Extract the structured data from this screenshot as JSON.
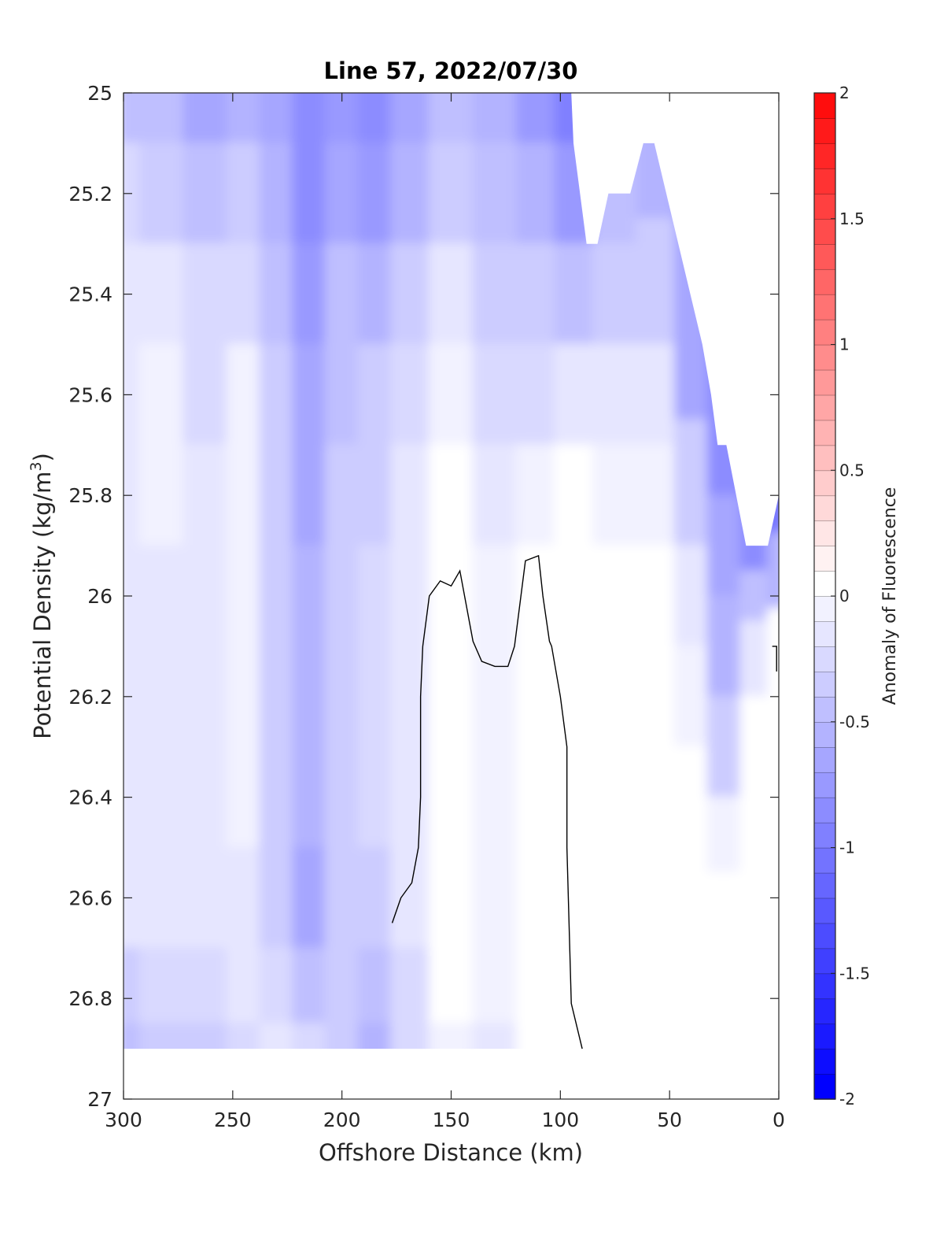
{
  "chart_data": {
    "type": "contour",
    "title": "Line 57, 2022/07/30",
    "xlabel": "Offshore Distance (km)",
    "ylabel_main": "Potential Density (kg/m",
    "ylabel_sup": "3",
    "ylabel_close": ")",
    "colorbar_label": "Anomaly of Fluorescence",
    "xlim": [
      300,
      0
    ],
    "ylim": [
      25,
      27
    ],
    "x_reversed": true,
    "y_reversed": true,
    "xticks": [
      300,
      250,
      200,
      150,
      100,
      50,
      0
    ],
    "xtick_labels": [
      "300",
      "250",
      "200",
      "150",
      "100",
      "50",
      "0"
    ],
    "yticks": [
      25,
      25.2,
      25.4,
      25.6,
      25.8,
      26,
      26.2,
      26.4,
      26.6,
      26.8,
      27
    ],
    "ytick_labels": [
      "25",
      "25.2",
      "25.4",
      "25.6",
      "25.8",
      "26",
      "26.2",
      "26.4",
      "26.6",
      "26.8",
      "27"
    ],
    "colorbar": {
      "range": [
        -2,
        2
      ],
      "levels": 40,
      "ticks": [
        -2,
        -1.5,
        -1,
        -0.5,
        0,
        0.5,
        1,
        1.5,
        2
      ],
      "tick_labels": [
        "-2",
        "-1.5",
        "-1",
        "-0.5",
        "0",
        "0.5",
        "1",
        "1.5",
        "2"
      ],
      "colormap": "blue-white-red",
      "low_color": "#0000ff",
      "mid_color": "#ffffff",
      "high_color": "#ff0000"
    },
    "data_extent": {
      "x": [
        0,
        300
      ],
      "y_bottom": 26.9,
      "upper_boundary": [
        [
          300,
          25
        ],
        [
          95,
          25
        ],
        [
          94,
          25.1
        ],
        [
          88,
          25.3
        ],
        [
          83,
          25.3
        ],
        [
          78,
          25.2
        ],
        [
          68,
          25.2
        ],
        [
          62,
          25.1
        ],
        [
          57,
          25.1
        ],
        [
          35,
          25.5
        ],
        [
          31,
          25.6
        ],
        [
          28,
          25.7
        ],
        [
          24,
          25.7
        ],
        [
          15,
          25.9
        ],
        [
          5,
          25.9
        ],
        [
          0,
          25.8
        ]
      ]
    },
    "columns": [
      {
        "x": 300,
        "values": [
          [
            25.0,
            -0.45
          ],
          [
            25.2,
            -0.25
          ],
          [
            25.4,
            -0.15
          ],
          [
            25.6,
            -0.15
          ],
          [
            25.8,
            -0.15
          ],
          [
            26.0,
            -0.15
          ],
          [
            26.2,
            -0.15
          ],
          [
            26.4,
            -0.15
          ],
          [
            26.6,
            -0.2
          ],
          [
            26.8,
            -0.35
          ],
          [
            26.9,
            -0.45
          ]
        ]
      },
      {
        "x": 285,
        "values": [
          [
            25.0,
            -0.5
          ],
          [
            25.2,
            -0.35
          ],
          [
            25.4,
            -0.15
          ],
          [
            25.6,
            -0.05
          ],
          [
            25.8,
            -0.05
          ],
          [
            26.0,
            -0.15
          ],
          [
            26.2,
            -0.15
          ],
          [
            26.4,
            -0.15
          ],
          [
            26.6,
            -0.2
          ],
          [
            26.8,
            -0.3
          ],
          [
            26.9,
            -0.4
          ]
        ]
      },
      {
        "x": 260,
        "values": [
          [
            25.0,
            -0.65
          ],
          [
            25.2,
            -0.5
          ],
          [
            25.4,
            -0.3
          ],
          [
            25.6,
            -0.25
          ],
          [
            25.8,
            -0.2
          ],
          [
            26.0,
            -0.2
          ],
          [
            26.2,
            -0.2
          ],
          [
            26.4,
            -0.2
          ],
          [
            26.6,
            -0.2
          ],
          [
            26.8,
            -0.3
          ],
          [
            26.9,
            -0.35
          ]
        ]
      },
      {
        "x": 245,
        "values": [
          [
            25.0,
            -0.55
          ],
          [
            25.2,
            -0.4
          ],
          [
            25.4,
            -0.25
          ],
          [
            25.6,
            -0.05
          ],
          [
            25.8,
            -0.05
          ],
          [
            26.0,
            -0.1
          ],
          [
            26.2,
            -0.1
          ],
          [
            26.4,
            -0.1
          ],
          [
            26.6,
            -0.15
          ],
          [
            26.8,
            -0.2
          ],
          [
            26.9,
            -0.25
          ]
        ]
      },
      {
        "x": 230,
        "values": [
          [
            25.0,
            -0.7
          ],
          [
            25.2,
            -0.6
          ],
          [
            25.4,
            -0.5
          ],
          [
            25.6,
            -0.4
          ],
          [
            25.8,
            -0.35
          ],
          [
            26.0,
            -0.35
          ],
          [
            26.2,
            -0.35
          ],
          [
            26.4,
            -0.35
          ],
          [
            26.6,
            -0.35
          ],
          [
            26.8,
            -0.25
          ],
          [
            26.9,
            -0.2
          ]
        ]
      },
      {
        "x": 215,
        "values": [
          [
            25.0,
            -0.9
          ],
          [
            25.2,
            -0.85
          ],
          [
            25.4,
            -0.8
          ],
          [
            25.6,
            -0.7
          ],
          [
            25.8,
            -0.65
          ],
          [
            26.0,
            -0.6
          ],
          [
            26.2,
            -0.6
          ],
          [
            26.4,
            -0.6
          ],
          [
            26.6,
            -0.65
          ],
          [
            26.8,
            -0.5
          ],
          [
            26.9,
            -0.25
          ]
        ]
      },
      {
        "x": 200,
        "values": [
          [
            25.0,
            -0.8
          ],
          [
            25.2,
            -0.7
          ],
          [
            25.4,
            -0.5
          ],
          [
            25.6,
            -0.45
          ],
          [
            25.8,
            -0.4
          ],
          [
            26.0,
            -0.4
          ],
          [
            26.2,
            -0.4
          ],
          [
            26.4,
            -0.4
          ],
          [
            26.6,
            -0.4
          ],
          [
            26.8,
            -0.4
          ],
          [
            26.9,
            -0.4
          ]
        ]
      },
      {
        "x": 185,
        "values": [
          [
            25.0,
            -0.9
          ],
          [
            25.2,
            -0.8
          ],
          [
            25.4,
            -0.55
          ],
          [
            25.6,
            -0.4
          ],
          [
            25.8,
            -0.35
          ],
          [
            26.0,
            -0.3
          ],
          [
            26.2,
            -0.3
          ],
          [
            26.4,
            -0.3
          ],
          [
            26.6,
            -0.35
          ],
          [
            26.8,
            -0.45
          ],
          [
            26.9,
            -0.55
          ]
        ]
      },
      {
        "x": 170,
        "values": [
          [
            25.0,
            -0.7
          ],
          [
            25.2,
            -0.55
          ],
          [
            25.4,
            -0.4
          ],
          [
            25.6,
            -0.3
          ],
          [
            25.8,
            -0.2
          ],
          [
            26.0,
            -0.15
          ],
          [
            26.2,
            -0.15
          ],
          [
            26.4,
            -0.2
          ],
          [
            26.6,
            -0.2
          ],
          [
            26.8,
            -0.25
          ],
          [
            26.9,
            -0.3
          ]
        ]
      },
      {
        "x": 150,
        "values": [
          [
            25.0,
            -0.5
          ],
          [
            25.2,
            -0.35
          ],
          [
            25.4,
            -0.2
          ],
          [
            25.6,
            -0.05
          ],
          [
            25.8,
            0.0
          ],
          [
            26.0,
            0.0
          ],
          [
            26.2,
            0.0
          ],
          [
            26.4,
            0.0
          ],
          [
            26.6,
            0.0
          ],
          [
            26.8,
            0.0
          ],
          [
            26.9,
            -0.05
          ]
        ]
      },
      {
        "x": 130,
        "values": [
          [
            25.0,
            -0.6
          ],
          [
            25.2,
            -0.5
          ],
          [
            25.4,
            -0.35
          ],
          [
            25.6,
            -0.25
          ],
          [
            25.8,
            -0.15
          ],
          [
            26.0,
            -0.1
          ],
          [
            26.2,
            -0.05
          ],
          [
            26.4,
            -0.05
          ],
          [
            26.6,
            -0.05
          ],
          [
            26.8,
            -0.1
          ],
          [
            26.9,
            -0.15
          ]
        ]
      },
      {
        "x": 110,
        "values": [
          [
            25.0,
            -0.75
          ],
          [
            25.2,
            -0.6
          ],
          [
            25.4,
            -0.4
          ],
          [
            25.6,
            -0.3
          ],
          [
            25.8,
            -0.1
          ],
          [
            26.0,
            0.0
          ],
          [
            26.2,
            0.0
          ],
          [
            26.4,
            0.0
          ],
          [
            26.6,
            0.0
          ],
          [
            26.8,
            0.0
          ],
          [
            26.9,
            0.0
          ]
        ]
      },
      {
        "x": 95,
        "values": [
          [
            25.0,
            -0.95
          ],
          [
            25.2,
            -0.75
          ],
          [
            25.4,
            -0.45
          ],
          [
            25.6,
            -0.2
          ],
          [
            25.8,
            0.0
          ],
          [
            26.0,
            0.0
          ],
          [
            26.2,
            0.0
          ],
          [
            26.4,
            0.0
          ],
          [
            26.6,
            0.0
          ],
          [
            26.8,
            0.0
          ],
          [
            26.9,
            0.0
          ]
        ]
      },
      {
        "x": 75,
        "values": [
          [
            25.2,
            -0.45
          ],
          [
            25.4,
            -0.35
          ],
          [
            25.6,
            -0.15
          ],
          [
            25.8,
            -0.05
          ],
          [
            26.0,
            0.0
          ],
          [
            26.2,
            0.0
          ],
          [
            26.4,
            0.0
          ],
          [
            26.6,
            0.0
          ],
          [
            26.8,
            0.0
          ],
          [
            26.9,
            0.0
          ]
        ]
      },
      {
        "x": 55,
        "values": [
          [
            25.1,
            -0.6
          ],
          [
            25.4,
            -0.35
          ],
          [
            25.6,
            -0.2
          ],
          [
            25.8,
            -0.05
          ],
          [
            26.0,
            0.0
          ],
          [
            26.2,
            0.05
          ],
          [
            26.4,
            0.0
          ],
          [
            26.6,
            0.0
          ],
          [
            26.8,
            0.0
          ],
          [
            26.9,
            0.0
          ]
        ]
      },
      {
        "x": 40,
        "values": [
          [
            25.5,
            -0.7
          ],
          [
            25.8,
            -0.35
          ],
          [
            26.0,
            -0.15
          ],
          [
            26.2,
            -0.05
          ],
          [
            26.4,
            0.0
          ],
          [
            26.6,
            0.0
          ],
          [
            26.8,
            0.0
          ],
          [
            26.9,
            0.0
          ]
        ]
      },
      {
        "x": 25,
        "values": [
          [
            25.7,
            -0.9
          ],
          [
            25.9,
            -0.7
          ],
          [
            26.1,
            -0.55
          ],
          [
            26.3,
            -0.4
          ],
          [
            26.5,
            -0.05
          ],
          [
            26.6,
            0.0
          ],
          [
            26.8,
            0.0
          ],
          [
            26.9,
            0.0
          ]
        ]
      },
      {
        "x": 10,
        "values": [
          [
            25.9,
            -0.85
          ],
          [
            26.0,
            -0.45
          ],
          [
            26.1,
            -0.15
          ],
          [
            26.3,
            0.0
          ],
          [
            26.5,
            0.0
          ],
          [
            26.8,
            0.0
          ],
          [
            26.9,
            0.0
          ]
        ]
      },
      {
        "x": 0,
        "values": [
          [
            25.8,
            -1.05
          ],
          [
            25.95,
            -0.55
          ],
          [
            26.1,
            0.0
          ],
          [
            26.3,
            0.0
          ],
          [
            26.6,
            0.0
          ],
          [
            26.9,
            0.0
          ]
        ]
      }
    ],
    "contour_lines": [
      {
        "level": 0,
        "color": "#000000",
        "points": [
          [
            90,
            26.9
          ],
          [
            95,
            26.81
          ],
          [
            97,
            26.5
          ],
          [
            97,
            26.3
          ],
          [
            100,
            26.2
          ],
          [
            104,
            26.1
          ],
          [
            105,
            26.09
          ],
          [
            108,
            26.0
          ],
          [
            110,
            25.92
          ],
          [
            116,
            25.93
          ],
          [
            121,
            26.1
          ],
          [
            124,
            26.14
          ],
          [
            130,
            26.14
          ],
          [
            136,
            26.13
          ],
          [
            140,
            26.09
          ],
          [
            146,
            25.95
          ],
          [
            150,
            25.98
          ],
          [
            155,
            25.97
          ],
          [
            160,
            26.0
          ],
          [
            163,
            26.1
          ],
          [
            164,
            26.2
          ],
          [
            164,
            26.4
          ],
          [
            165,
            26.5
          ],
          [
            168,
            26.57
          ],
          [
            173,
            26.6
          ],
          [
            177,
            26.65
          ]
        ]
      },
      {
        "level": 0,
        "color": "#000000",
        "points": [
          [
            1,
            26.15
          ],
          [
            1,
            26.1
          ],
          [
            3,
            26.1
          ]
        ]
      }
    ],
    "positive_patch": {
      "x": [
        55,
        52
      ],
      "y": [
        26.19,
        26.31
      ],
      "value": 0.1
    }
  }
}
